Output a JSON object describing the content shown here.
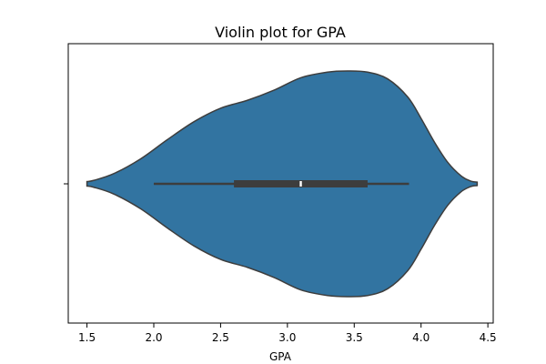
{
  "chart_data": {
    "type": "violin",
    "title": "Violin plot for GPA",
    "xlabel": "GPA",
    "ylabel": "",
    "xlim": [
      1.36,
      4.54
    ],
    "xticks": [
      1.5,
      2.0,
      2.5,
      3.0,
      3.5,
      4.0,
      4.5
    ],
    "xtick_labels": [
      "1.5",
      "2.0",
      "2.5",
      "3.0",
      "3.5",
      "4.0",
      "4.5"
    ],
    "violin": {
      "color": "#3274a1",
      "edge_color": "#3d3d3d",
      "support_min": 1.5,
      "support_max": 4.42,
      "density_profile": [
        [
          1.5,
          0.02
        ],
        [
          1.55,
          0.03
        ],
        [
          1.7,
          0.09
        ],
        [
          1.9,
          0.22
        ],
        [
          2.1,
          0.39
        ],
        [
          2.3,
          0.55
        ],
        [
          2.5,
          0.67
        ],
        [
          2.7,
          0.74
        ],
        [
          2.9,
          0.83
        ],
        [
          3.1,
          0.94
        ],
        [
          3.3,
          0.99
        ],
        [
          3.45,
          1.0
        ],
        [
          3.6,
          0.99
        ],
        [
          3.75,
          0.93
        ],
        [
          3.9,
          0.77
        ],
        [
          4.0,
          0.58
        ],
        [
          4.1,
          0.37
        ],
        [
          4.2,
          0.19
        ],
        [
          4.3,
          0.07
        ],
        [
          4.37,
          0.025
        ],
        [
          4.42,
          0.015
        ]
      ],
      "box": {
        "whisker_low": 2.0,
        "q1": 2.6,
        "median": 3.1,
        "q3": 3.6,
        "whisker_high": 3.91
      }
    },
    "grid": false,
    "legend": "none"
  }
}
